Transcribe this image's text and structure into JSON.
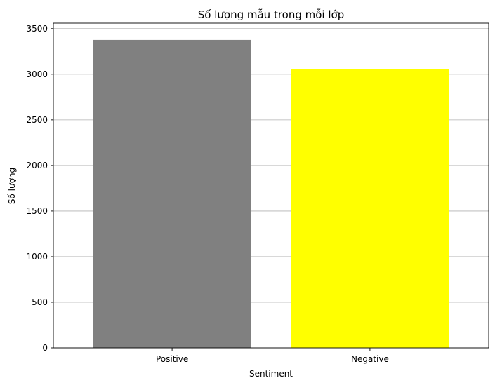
{
  "chart_data": {
    "type": "bar",
    "title": "Số lượng mẫu trong mỗi lớp",
    "xlabel": "Sentiment",
    "ylabel": "Số lượng",
    "categories": [
      "Positive",
      "Negative"
    ],
    "values": [
      3376,
      3054
    ],
    "colors": [
      "#808080",
      "#ffff00"
    ],
    "ylim": [
      0,
      3560
    ],
    "yticks": [
      0,
      500,
      1000,
      1500,
      2000,
      2500,
      3000,
      3500
    ],
    "grid": "y",
    "legend": "none"
  }
}
